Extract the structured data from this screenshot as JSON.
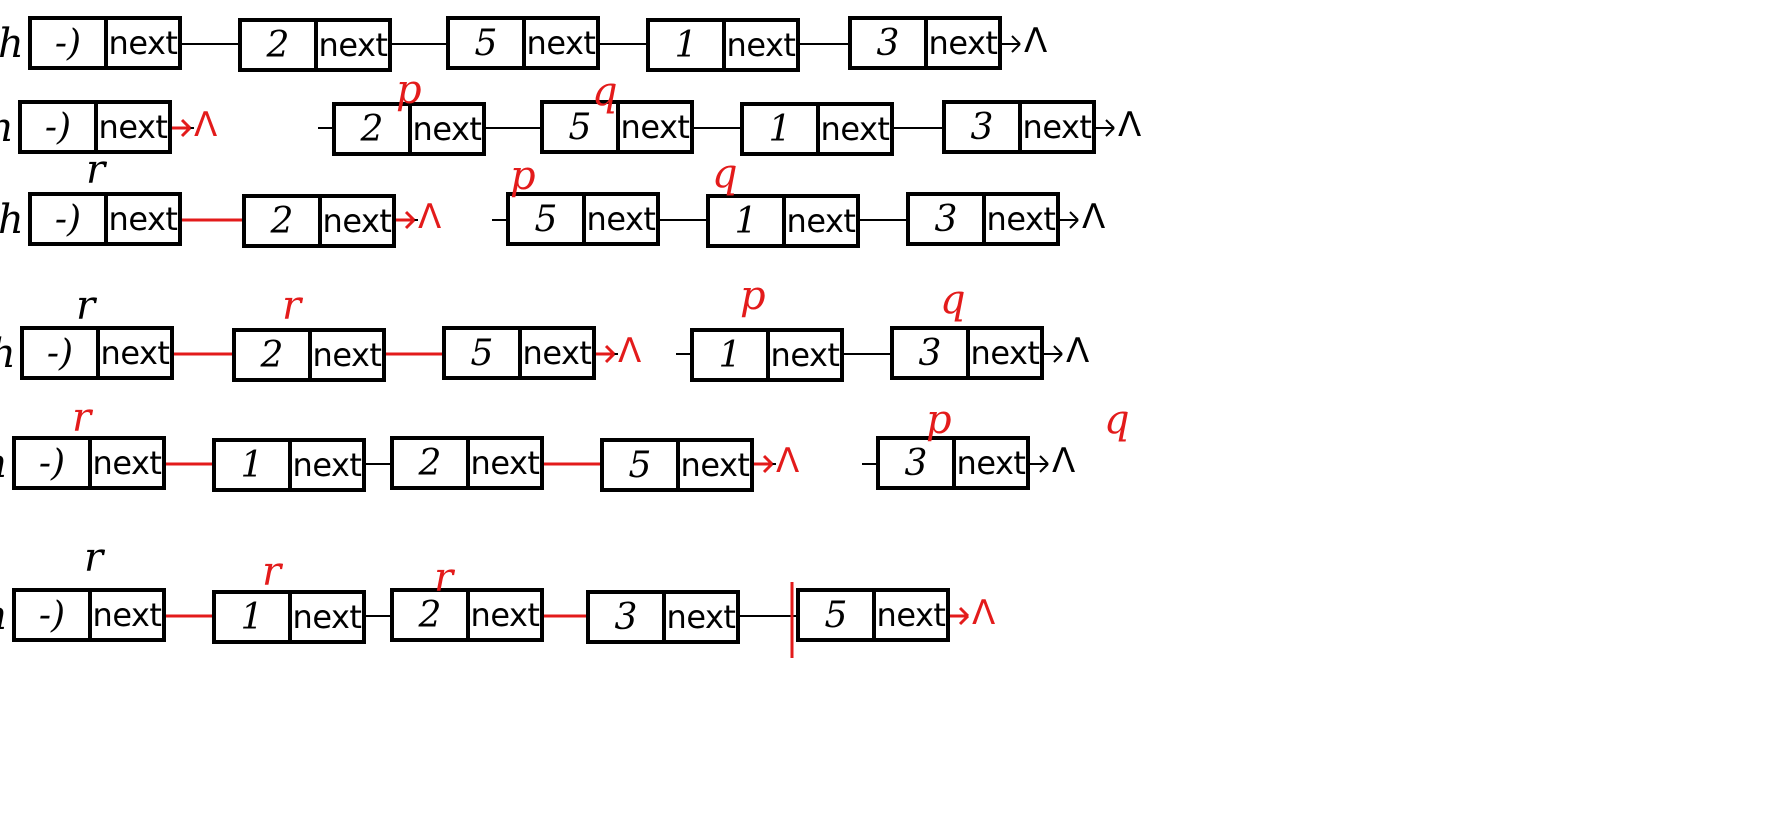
{
  "diagram": {
    "title": "",
    "null_symbol": "Λ",
    "colors": {
      "ink": "#000000",
      "annotation": "#e31b1b"
    },
    "rows": [
      {
        "head": "h",
        "nodes": [
          "-)",
          "2",
          "5",
          "1",
          "3"
        ],
        "next": "next",
        "annotations": []
      },
      {
        "head": "h",
        "nodes": [
          "-)",
          "2",
          "5",
          "1",
          "3"
        ],
        "next": "next",
        "annotations": [
          {
            "text": "p",
            "node": 1
          },
          {
            "text": "q",
            "node": 2
          }
        ]
      },
      {
        "head": "h",
        "nodes": [
          "-)",
          "2",
          "5",
          "1",
          "3"
        ],
        "next": "next",
        "annotations": [
          {
            "text": "r",
            "node": 0
          },
          {
            "text": "p",
            "node": 2
          },
          {
            "text": "q",
            "node": 3
          }
        ]
      },
      {
        "head": "h",
        "nodes": [
          "-)",
          "2",
          "5",
          "1",
          "3"
        ],
        "next": "next",
        "annotations": [
          {
            "text": "r",
            "node": 0
          },
          {
            "text": "r",
            "node": 1
          },
          {
            "text": "p",
            "node": 3
          },
          {
            "text": "q",
            "node": 4
          }
        ]
      },
      {
        "head": "h",
        "nodes": [
          "-)",
          "1",
          "2",
          "5",
          "3"
        ],
        "next": "next",
        "annotations": [
          {
            "text": "r",
            "node": 0
          },
          {
            "text": "p",
            "node": 4
          },
          {
            "text": "q",
            "node": 5
          }
        ]
      },
      {
        "head": "h",
        "nodes": [
          "-)",
          "1",
          "2",
          "3",
          "5"
        ],
        "next": "next",
        "annotations": [
          {
            "text": "r",
            "node": 0
          },
          {
            "text": "r",
            "node": 1
          },
          {
            "text": "r",
            "node": 2
          }
        ]
      }
    ]
  }
}
